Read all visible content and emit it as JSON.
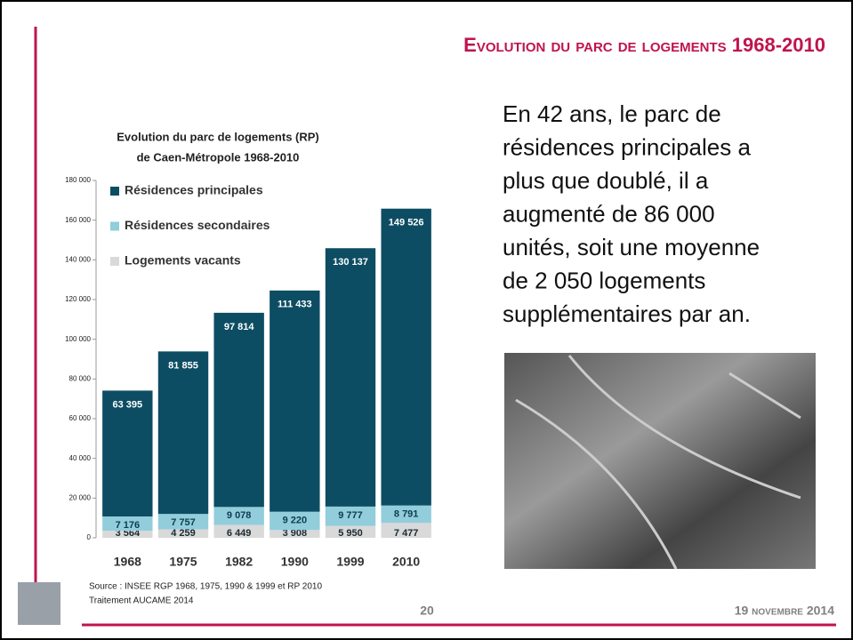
{
  "slide_title": "Evolution du parc de logements 1968-2010",
  "paragraph": [
    "En 42 ans, le parc de",
    "résidences principales a",
    "plus que doublé, il a",
    "augmenté de 86 000",
    "unités, soit une moyenne",
    "de 2 050 logements",
    "supplémentaires par an."
  ],
  "source": [
    "Source : INSEE  RGP 1968, 1975, 1990 & 1999 et RP 2010",
    "Traitement AUCAME 2014"
  ],
  "page_number": "20",
  "date": "19 novembre 2014",
  "chart_data": {
    "type": "stacked_bar",
    "title": "Evolution du parc de logements (RP)",
    "subtitle": "de Caen-Métropole 1968-2010",
    "categories": [
      "1968",
      "1975",
      "1982",
      "1990",
      "1999",
      "2010"
    ],
    "series": [
      {
        "name": "Logements vacants",
        "color": "#d9d9d9",
        "values": [
          3564,
          4259,
          6449,
          3908,
          5950,
          7477
        ],
        "value_labels": [
          "3 564",
          "4 259",
          "6 449",
          "3 908",
          "5 950",
          "7 477"
        ]
      },
      {
        "name": "Résidences secondaires",
        "color": "#92cddc",
        "values": [
          7176,
          7757,
          9078,
          9220,
          9777,
          8791
        ],
        "value_labels": [
          "7 176",
          "7 757",
          "9 078",
          "9 220",
          "9 777",
          "8 791"
        ]
      },
      {
        "name": "Résidences principales",
        "color": "#0d4d63",
        "values": [
          63395,
          81855,
          97814,
          111433,
          130137,
          149526
        ],
        "value_labels": [
          "63 395",
          "81 855",
          "97 814",
          "111 433",
          "130 137",
          "149 526"
        ]
      }
    ],
    "ylim": [
      0,
      180000
    ],
    "yticks": [
      0,
      {
        "value": 20000,
        "label": "20 000"
      },
      {
        "value": 40000,
        "label": "40 000"
      },
      {
        "value": 60000,
        "label": "60 000"
      },
      {
        "value": 80000,
        "label": "80 000"
      },
      {
        "value": 100000,
        "label": "100 000"
      },
      {
        "value": 120000,
        "label": "120 000"
      },
      {
        "value": 140000,
        "label": "140 000"
      },
      {
        "value": 160000,
        "label": "160 000"
      },
      {
        "value": 180000,
        "label": "180 000"
      }
    ],
    "legend": "upper left"
  }
}
